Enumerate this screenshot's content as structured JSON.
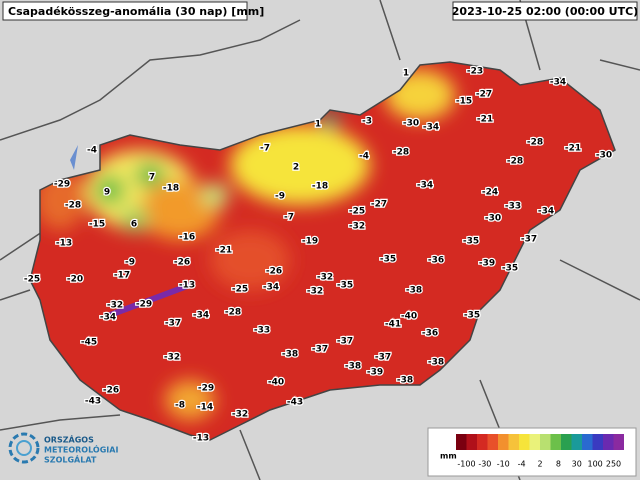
{
  "header": {
    "title": "Csapadékösszeg-anomália (30 nap) [mm]",
    "timestamp": "2023-10-25 02:00 (00:00 UTC)"
  },
  "map": {
    "labels": [
      -23,
      -34,
      1,
      -27,
      -15,
      1,
      -3,
      -30,
      -34,
      -21,
      -4,
      -7,
      -4,
      -28,
      -28,
      -21,
      -30,
      7,
      2,
      -28,
      -29,
      9,
      -18,
      -9,
      -18,
      -34,
      -24,
      -28,
      -15,
      6,
      -7,
      -27,
      -25,
      -33,
      -34,
      -30,
      -32,
      -16,
      -13,
      -19,
      -35,
      -37,
      -21,
      -9,
      -26,
      -35,
      -36,
      -39,
      -35,
      -25,
      -20,
      -17,
      -26,
      -13,
      -32,
      -35,
      -25,
      -34,
      -32,
      -38,
      -32,
      -29,
      -28,
      -34,
      -34,
      -37,
      -35,
      -40,
      -41,
      -33,
      -36,
      -45,
      -37,
      -37,
      -38,
      -32,
      -37,
      -38,
      -38,
      -39,
      -40,
      -38,
      -29,
      -26,
      -43,
      -43,
      -8,
      -14,
      -32,
      -13
    ]
  },
  "legend": {
    "unit": "mm",
    "ticks": [
      -100,
      -30,
      -10,
      -4,
      2,
      8,
      30,
      100,
      250
    ]
  },
  "logo": {
    "lines": [
      "ORSZÁGOS",
      "METEOROLÓGIAI",
      "SZOLGÁLAT"
    ]
  }
}
